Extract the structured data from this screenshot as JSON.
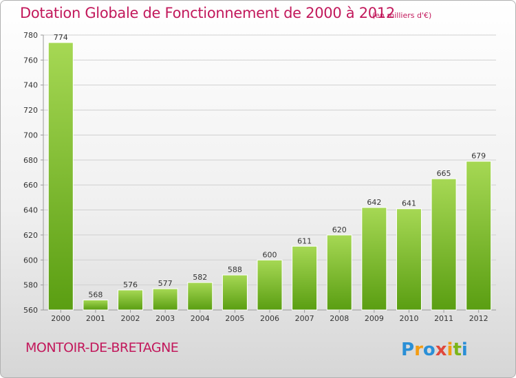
{
  "title": "Dotation Globale de Fonctionnement de 2000 à 2012",
  "unit_note": "(en milliers d'€)",
  "commune": "MONTOIR-DE-BRETAGNE",
  "logo_text": "Proxiti",
  "colors": {
    "title": "#c2185b",
    "bar_light": "#a6d854",
    "bar_dark": "#5a9e12",
    "grid": "#d0d0d0",
    "logo_blue": "#2a8fd6",
    "logo_orange": "#f39c12",
    "logo_green": "#7cb518"
  },
  "chart_data": {
    "type": "bar",
    "title": "Dotation Globale de Fonctionnement de 2000 à 2012",
    "subtitle": "(en milliers d'€)",
    "categories": [
      "2000",
      "2001",
      "2002",
      "2003",
      "2004",
      "2005",
      "2006",
      "2007",
      "2008",
      "2009",
      "2010",
      "2011",
      "2012"
    ],
    "values": [
      774,
      568,
      576,
      577,
      582,
      588,
      600,
      611,
      620,
      642,
      641,
      665,
      679
    ],
    "value_labels": [
      "774",
      "568",
      "576",
      "577",
      "582",
      "588",
      "600",
      "611",
      "620",
      "642",
      "641",
      "665",
      "679"
    ],
    "ylim": [
      560,
      780
    ],
    "yticks": [
      "560",
      "580",
      "600",
      "620",
      "640",
      "660",
      "680",
      "700",
      "720",
      "740",
      "760",
      "780"
    ],
    "grid": true,
    "xlabel": "",
    "ylabel": ""
  }
}
